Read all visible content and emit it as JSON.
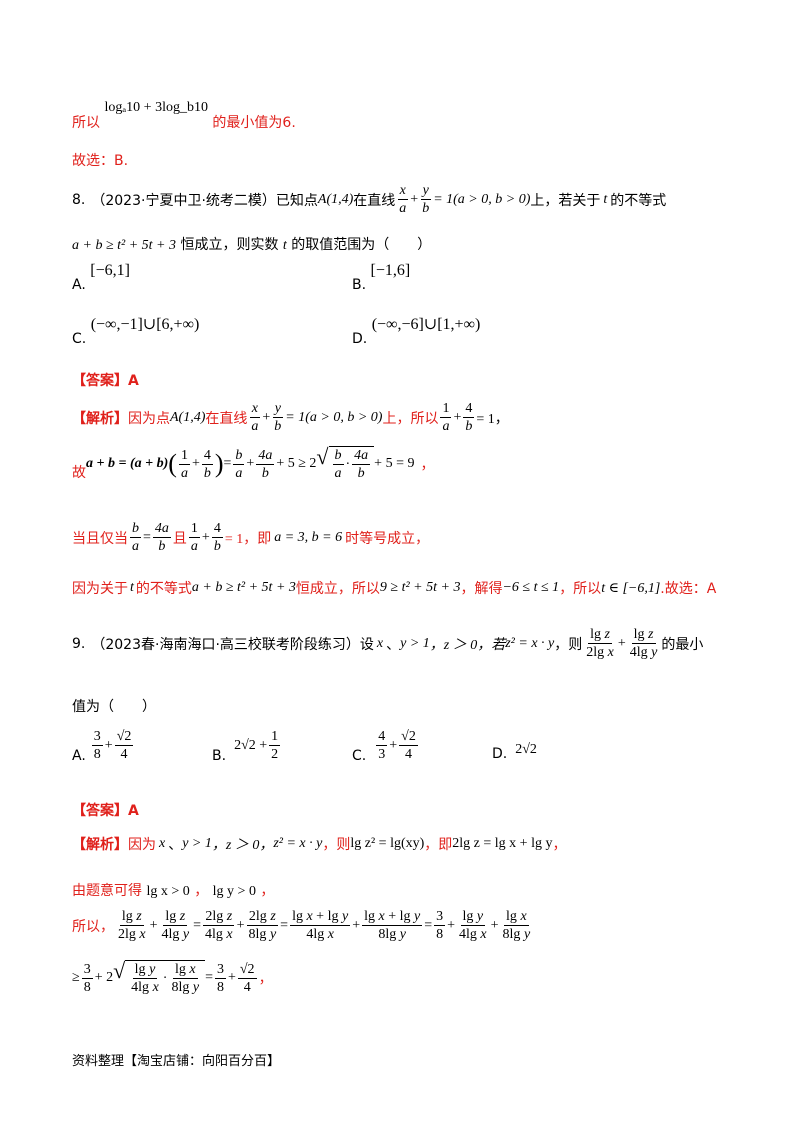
{
  "p1": {
    "prefix": "所以",
    "expr": "logₐ10 + 3log_b10",
    "suffix": "的最小值为6."
  },
  "p2": {
    "text": "故选：B."
  },
  "q8": {
    "number": "8.",
    "source": "（2023·宁夏中卫·统考二模）",
    "stem_part1": "已知点",
    "point": "A(1,4)",
    "stem_part2": "在直线",
    "line_cond": "= 1(a > 0, b > 0)",
    "stem_part3": "上，若关于",
    "var_t": "t",
    "stem_part4": "的不等式",
    "ineq": "a + b ≥ t² + 5t + 3",
    "stem_part5": "恒成立，则实数",
    "stem_part6": "的取值范围为（　　）",
    "options": [
      {
        "label": "A.",
        "value": "[−6,1]"
      },
      {
        "label": "B.",
        "value": "[−1,6]"
      },
      {
        "label": "C.",
        "value": "(−∞,−1]∪[6,+∞)"
      },
      {
        "label": "D.",
        "value": "(−∞,−6]∪[1,+∞)"
      }
    ],
    "answer": "【答案】A",
    "analysis_head": "【解析】",
    "analysis1_a": "因为点",
    "analysis1_b": "在直线",
    "analysis1_c": "上，所以",
    "analysis1_d": "= 1，",
    "analysis2_prefix": "故",
    "analysis2_end": "+ 5 = 9",
    "analysis2_comma": "，",
    "analysis3_a": "当且仅当",
    "analysis3_b": "且",
    "analysis3_c": "= 1，即",
    "analysis3_d": "a = 3, b = 6",
    "analysis3_e": "时等号成立，",
    "analysis4_a": "因为关于",
    "analysis4_b": "的不等式",
    "analysis4_ineq": "a + b ≥ t² + 5t + 3",
    "analysis4_c": "恒成立，所以",
    "analysis4_ineq2": "9 ≥ t² + 5t + 3",
    "analysis4_d": "，解得",
    "analysis4_range": "−6 ≤ t ≤ 1",
    "analysis4_e": "，所以",
    "analysis4_set": "t ∈ [−6,1]",
    "analysis4_f": ".故选：A"
  },
  "q9": {
    "number": "9.",
    "source": "（2023春·海南海口·高三校联考阶段练习）",
    "stem_a": "设",
    "x": "x",
    "dun": "、",
    "y_cond": "y > 1",
    "z_cond": "，z ＞ 0，若",
    "z_eq": "z² = x · y",
    "stem_b": "，则",
    "stem_c": "的最小",
    "stem_d": "值为（　　）",
    "options": [
      {
        "label": "A."
      },
      {
        "label": "B."
      },
      {
        "label": "C."
      },
      {
        "label": "D.",
        "value": "2√2"
      }
    ],
    "answer": "【答案】A",
    "analysis_head": "【解析】",
    "a1_a": "因为",
    "a1_dun": "、",
    "a1_y": "y > 1",
    "a1_z": "，z ＞ 0，",
    "a1_zeq": "z² = x · y",
    "a1_b": "，则",
    "a1_lg": "lg z² = lg(xy)",
    "a1_c": "，即",
    "a1_eq": "2lg z = lg x + lg y",
    "a1_d": "，",
    "a2_a": "由题意可得",
    "a2_ineq1": "lg x > 0",
    "a2_sep": "，",
    "a2_ineq2": "lg y > 0",
    "a2_end": "，",
    "a3_a": "所以，",
    "a4_geq": "≥",
    "a4_end": "，"
  },
  "footer": {
    "text": "资料整理【淘宝店铺：向阳百分百】"
  },
  "colors": {
    "red": "#e0201b",
    "black": "#000000"
  }
}
